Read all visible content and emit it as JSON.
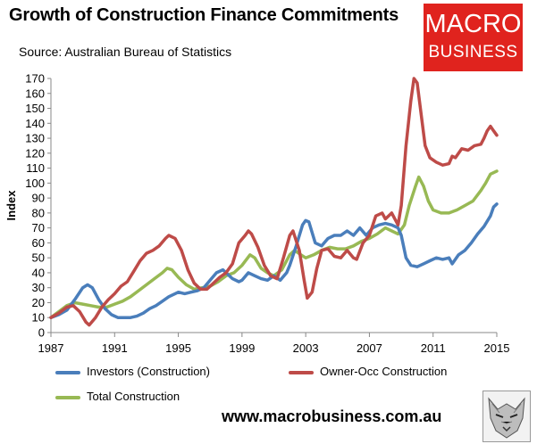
{
  "header": {
    "title": "Growth of Construction Finance Commitments",
    "source": "Source: Australian Bureau of Statistics"
  },
  "logo": {
    "line1": "MACRO",
    "line2": "BUSINESS"
  },
  "footer": {
    "url": "www.macrobusiness.com.au"
  },
  "colors": {
    "investors": "#4a7ebb",
    "owner_occ": "#be4b48",
    "total": "#98b954"
  },
  "icons": {
    "footer_image": "wolf-icon"
  },
  "chart_data": {
    "type": "line",
    "title": "Growth of Construction Finance Commitments",
    "ylabel": "Index",
    "xlabel": "",
    "xlim": [
      1987,
      2015
    ],
    "ylim": [
      0,
      170
    ],
    "x_ticks": [
      "1987",
      "1991",
      "1995",
      "1999",
      "2003",
      "2007",
      "2011",
      "2015"
    ],
    "y_ticks": [
      "0",
      "10",
      "20",
      "30",
      "40",
      "50",
      "60",
      "70",
      "80",
      "90",
      "100",
      "110",
      "120",
      "130",
      "140",
      "150",
      "160",
      "170"
    ],
    "grid": false,
    "legend_position": "bottom",
    "series": [
      {
        "name": "Investors (Construction)",
        "color": "#4a7ebb",
        "points": [
          [
            1987.0,
            10
          ],
          [
            1987.5,
            12
          ],
          [
            1988.0,
            15
          ],
          [
            1988.5,
            22
          ],
          [
            1989.0,
            30
          ],
          [
            1989.3,
            32
          ],
          [
            1989.6,
            30
          ],
          [
            1990.0,
            22
          ],
          [
            1990.4,
            16
          ],
          [
            1990.8,
            12
          ],
          [
            1991.2,
            10
          ],
          [
            1991.6,
            10
          ],
          [
            1992.0,
            10
          ],
          [
            1992.4,
            11
          ],
          [
            1992.8,
            13
          ],
          [
            1993.2,
            16
          ],
          [
            1993.6,
            18
          ],
          [
            1994.0,
            21
          ],
          [
            1994.4,
            24
          ],
          [
            1994.8,
            26
          ],
          [
            1995.0,
            27
          ],
          [
            1995.4,
            26
          ],
          [
            1995.8,
            27
          ],
          [
            1996.2,
            28
          ],
          [
            1996.6,
            30
          ],
          [
            1997.0,
            35
          ],
          [
            1997.4,
            40
          ],
          [
            1997.8,
            42
          ],
          [
            1998.0,
            40
          ],
          [
            1998.4,
            36
          ],
          [
            1998.8,
            34
          ],
          [
            1999.0,
            35
          ],
          [
            1999.4,
            40
          ],
          [
            1999.8,
            38
          ],
          [
            2000.2,
            36
          ],
          [
            2000.6,
            35
          ],
          [
            2001.0,
            38
          ],
          [
            2001.4,
            35
          ],
          [
            2001.8,
            40
          ],
          [
            2002.0,
            45
          ],
          [
            2002.4,
            58
          ],
          [
            2002.8,
            72
          ],
          [
            2003.0,
            75
          ],
          [
            2003.2,
            74
          ],
          [
            2003.6,
            60
          ],
          [
            2004.0,
            58
          ],
          [
            2004.4,
            63
          ],
          [
            2004.8,
            65
          ],
          [
            2005.2,
            65
          ],
          [
            2005.6,
            68
          ],
          [
            2006.0,
            65
          ],
          [
            2006.4,
            70
          ],
          [
            2006.8,
            65
          ],
          [
            2007.2,
            70
          ],
          [
            2007.6,
            72
          ],
          [
            2008.0,
            73
          ],
          [
            2008.4,
            72
          ],
          [
            2008.8,
            70
          ],
          [
            2009.0,
            65
          ],
          [
            2009.3,
            50
          ],
          [
            2009.6,
            45
          ],
          [
            2010.0,
            44
          ],
          [
            2010.4,
            46
          ],
          [
            2010.8,
            48
          ],
          [
            2011.2,
            50
          ],
          [
            2011.6,
            49
          ],
          [
            2012.0,
            50
          ],
          [
            2012.2,
            46
          ],
          [
            2012.6,
            52
          ],
          [
            2013.0,
            55
          ],
          [
            2013.4,
            60
          ],
          [
            2013.8,
            66
          ],
          [
            2014.2,
            71
          ],
          [
            2014.6,
            78
          ],
          [
            2014.8,
            84
          ],
          [
            2015.0,
            86
          ]
        ]
      },
      {
        "name": "Owner-Occ Construction",
        "color": "#be4b48",
        "points": [
          [
            1987.0,
            10
          ],
          [
            1987.5,
            13
          ],
          [
            1988.0,
            17
          ],
          [
            1988.4,
            18
          ],
          [
            1988.8,
            14
          ],
          [
            1989.2,
            7
          ],
          [
            1989.4,
            5
          ],
          [
            1989.8,
            10
          ],
          [
            1990.2,
            17
          ],
          [
            1990.6,
            22
          ],
          [
            1991.0,
            26
          ],
          [
            1991.4,
            31
          ],
          [
            1991.8,
            34
          ],
          [
            1992.2,
            41
          ],
          [
            1992.6,
            48
          ],
          [
            1993.0,
            53
          ],
          [
            1993.4,
            55
          ],
          [
            1993.8,
            58
          ],
          [
            1994.2,
            63
          ],
          [
            1994.4,
            65
          ],
          [
            1994.8,
            63
          ],
          [
            1995.2,
            55
          ],
          [
            1995.6,
            42
          ],
          [
            1996.0,
            33
          ],
          [
            1996.4,
            29
          ],
          [
            1996.8,
            29
          ],
          [
            1997.2,
            33
          ],
          [
            1997.6,
            37
          ],
          [
            1998.0,
            40
          ],
          [
            1998.4,
            46
          ],
          [
            1998.8,
            60
          ],
          [
            1999.2,
            65
          ],
          [
            1999.4,
            68
          ],
          [
            1999.6,
            66
          ],
          [
            2000.0,
            57
          ],
          [
            2000.4,
            45
          ],
          [
            2000.8,
            38
          ],
          [
            2001.2,
            36
          ],
          [
            2001.6,
            50
          ],
          [
            2002.0,
            65
          ],
          [
            2002.2,
            68
          ],
          [
            2002.6,
            55
          ],
          [
            2002.9,
            35
          ],
          [
            2003.1,
            23
          ],
          [
            2003.4,
            27
          ],
          [
            2003.7,
            43
          ],
          [
            2004.0,
            55
          ],
          [
            2004.4,
            56
          ],
          [
            2004.8,
            51
          ],
          [
            2005.2,
            50
          ],
          [
            2005.6,
            55
          ],
          [
            2006.0,
            50
          ],
          [
            2006.2,
            49
          ],
          [
            2006.6,
            60
          ],
          [
            2007.0,
            65
          ],
          [
            2007.4,
            78
          ],
          [
            2007.8,
            80
          ],
          [
            2008.0,
            76
          ],
          [
            2008.4,
            80
          ],
          [
            2008.8,
            72
          ],
          [
            2009.0,
            85
          ],
          [
            2009.3,
            125
          ],
          [
            2009.6,
            155
          ],
          [
            2009.8,
            170
          ],
          [
            2010.0,
            167
          ],
          [
            2010.2,
            150
          ],
          [
            2010.5,
            125
          ],
          [
            2010.8,
            117
          ],
          [
            2011.2,
            114
          ],
          [
            2011.6,
            112
          ],
          [
            2012.0,
            113
          ],
          [
            2012.2,
            118
          ],
          [
            2012.4,
            117
          ],
          [
            2012.8,
            123
          ],
          [
            2013.2,
            122
          ],
          [
            2013.6,
            125
          ],
          [
            2014.0,
            126
          ],
          [
            2014.2,
            130
          ],
          [
            2014.4,
            135
          ],
          [
            2014.6,
            138
          ],
          [
            2014.8,
            135
          ],
          [
            2015.0,
            132
          ]
        ]
      },
      {
        "name": "Total Construction",
        "color": "#98b954",
        "points": [
          [
            1987.0,
            10
          ],
          [
            1987.5,
            14
          ],
          [
            1988.0,
            18
          ],
          [
            1988.5,
            20
          ],
          [
            1989.0,
            19
          ],
          [
            1989.5,
            18
          ],
          [
            1990.0,
            17
          ],
          [
            1990.5,
            17
          ],
          [
            1991.0,
            19
          ],
          [
            1991.5,
            21
          ],
          [
            1992.0,
            24
          ],
          [
            1992.5,
            28
          ],
          [
            1993.0,
            32
          ],
          [
            1993.5,
            36
          ],
          [
            1994.0,
            40
          ],
          [
            1994.3,
            43
          ],
          [
            1994.6,
            42
          ],
          [
            1995.0,
            37
          ],
          [
            1995.5,
            32
          ],
          [
            1996.0,
            29
          ],
          [
            1996.5,
            30
          ],
          [
            1997.0,
            31
          ],
          [
            1997.5,
            34
          ],
          [
            1998.0,
            38
          ],
          [
            1998.5,
            40
          ],
          [
            1999.0,
            45
          ],
          [
            1999.5,
            52
          ],
          [
            1999.8,
            50
          ],
          [
            2000.2,
            43
          ],
          [
            2000.6,
            40
          ],
          [
            2001.0,
            38
          ],
          [
            2001.5,
            42
          ],
          [
            2002.0,
            52
          ],
          [
            2002.3,
            55
          ],
          [
            2002.7,
            52
          ],
          [
            2003.0,
            50
          ],
          [
            2003.5,
            52
          ],
          [
            2004.0,
            55
          ],
          [
            2004.5,
            57
          ],
          [
            2005.0,
            56
          ],
          [
            2005.5,
            56
          ],
          [
            2006.0,
            58
          ],
          [
            2006.5,
            61
          ],
          [
            2007.0,
            63
          ],
          [
            2007.5,
            66
          ],
          [
            2008.0,
            70
          ],
          [
            2008.4,
            68
          ],
          [
            2008.8,
            66
          ],
          [
            2009.2,
            72
          ],
          [
            2009.5,
            85
          ],
          [
            2009.9,
            98
          ],
          [
            2010.1,
            104
          ],
          [
            2010.4,
            98
          ],
          [
            2010.7,
            88
          ],
          [
            2011.0,
            82
          ],
          [
            2011.5,
            80
          ],
          [
            2012.0,
            80
          ],
          [
            2012.5,
            82
          ],
          [
            2013.0,
            85
          ],
          [
            2013.5,
            88
          ],
          [
            2014.0,
            95
          ],
          [
            2014.3,
            100
          ],
          [
            2014.6,
            106
          ],
          [
            2015.0,
            108
          ]
        ]
      }
    ]
  }
}
